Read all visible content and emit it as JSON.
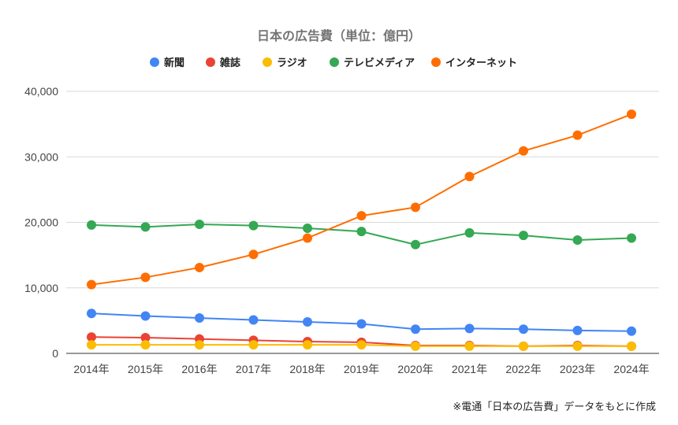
{
  "chart_data": {
    "type": "line",
    "title": "日本の広告費（単位：億円）",
    "categories": [
      "2014年",
      "2015年",
      "2016年",
      "2017年",
      "2018年",
      "2019年",
      "2020年",
      "2021年",
      "2022年",
      "2023年",
      "2024年"
    ],
    "ylim": [
      0,
      40000
    ],
    "yticks": [
      0,
      10000,
      20000,
      30000,
      40000
    ],
    "ytick_labels": [
      "0",
      "10,000",
      "20,000",
      "30,000",
      "40,000"
    ],
    "grid": true,
    "legend_position": "top",
    "series": [
      {
        "name": "新聞",
        "color": "#4285F4",
        "values": [
          6100,
          5700,
          5400,
          5100,
          4800,
          4500,
          3700,
          3800,
          3700,
          3500,
          3400
        ]
      },
      {
        "name": "雑誌",
        "color": "#EA4335",
        "values": [
          2500,
          2400,
          2200,
          2000,
          1800,
          1700,
          1200,
          1200,
          1100,
          1200,
          1100
        ]
      },
      {
        "name": "ラジオ",
        "color": "#FBBC04",
        "values": [
          1300,
          1300,
          1300,
          1300,
          1300,
          1300,
          1100,
          1100,
          1100,
          1100,
          1100
        ]
      },
      {
        "name": "テレビメディア",
        "color": "#34A853",
        "values": [
          19600,
          19300,
          19700,
          19500,
          19100,
          18600,
          16600,
          18400,
          18000,
          17300,
          17600
        ]
      },
      {
        "name": "インターネット",
        "color": "#FF6D01",
        "values": [
          10500,
          11600,
          13100,
          15100,
          17600,
          21000,
          22300,
          27000,
          30900,
          33300,
          36500
        ]
      }
    ],
    "annotation": "※電通「日本の広告費」データをもとに作成"
  }
}
